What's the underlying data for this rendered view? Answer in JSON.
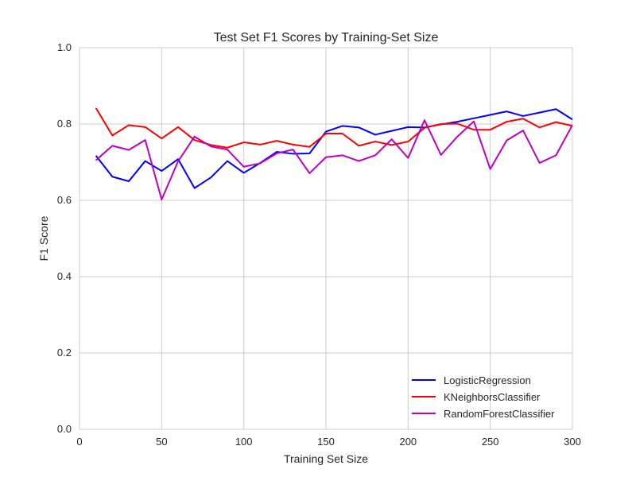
{
  "chart_data": {
    "type": "line",
    "title": "Test Set F1 Scores by Training-Set Size",
    "xlabel": "Training Set Size",
    "ylabel": "F1 Score",
    "xlim": [
      0,
      300
    ],
    "ylim": [
      0.0,
      1.0
    ],
    "xticks": [
      0,
      50,
      100,
      150,
      200,
      250,
      300
    ],
    "xtick_labels": [
      "0",
      "50",
      "100",
      "150",
      "200",
      "250",
      "300"
    ],
    "yticks": [
      0.0,
      0.2,
      0.4,
      0.6,
      0.8,
      1.0
    ],
    "ytick_labels": [
      "0.0",
      "0.2",
      "0.4",
      "0.6",
      "0.8",
      "1.0"
    ],
    "grid": true,
    "legend_position": "lower-right",
    "x": [
      10,
      20,
      30,
      40,
      50,
      60,
      70,
      80,
      90,
      100,
      110,
      120,
      130,
      140,
      150,
      160,
      170,
      180,
      190,
      200,
      210,
      220,
      230,
      240,
      250,
      260,
      270,
      280,
      290,
      300
    ],
    "series": [
      {
        "name": "LogisticRegression",
        "color": "#0000ff",
        "values": [
          0.717,
          0.662,
          0.65,
          0.703,
          0.677,
          0.708,
          0.632,
          0.66,
          0.703,
          0.672,
          0.698,
          0.727,
          0.722,
          0.723,
          0.78,
          0.795,
          0.791,
          0.772,
          0.782,
          0.792,
          0.791,
          0.799,
          0.806,
          0.815,
          0.824,
          0.833,
          0.821,
          0.83,
          0.839,
          0.812
        ]
      },
      {
        "name": "KNeighborsClassifier",
        "color": "#ff0000",
        "values": [
          0.842,
          0.77,
          0.797,
          0.792,
          0.762,
          0.792,
          0.758,
          0.745,
          0.738,
          0.752,
          0.746,
          0.756,
          0.746,
          0.74,
          0.775,
          0.775,
          0.743,
          0.754,
          0.745,
          0.754,
          0.79,
          0.8,
          0.801,
          0.785,
          0.785,
          0.806,
          0.814,
          0.791,
          0.805,
          0.795
        ]
      },
      {
        "name": "RandomForestClassifier",
        "color": "#bf00bf",
        "values": [
          0.705,
          0.743,
          0.732,
          0.758,
          0.602,
          0.702,
          0.767,
          0.741,
          0.733,
          0.688,
          0.697,
          0.723,
          0.733,
          0.671,
          0.713,
          0.718,
          0.703,
          0.718,
          0.76,
          0.711,
          0.81,
          0.719,
          0.767,
          0.807,
          0.682,
          0.757,
          0.783,
          0.698,
          0.718,
          0.797
        ]
      }
    ]
  }
}
